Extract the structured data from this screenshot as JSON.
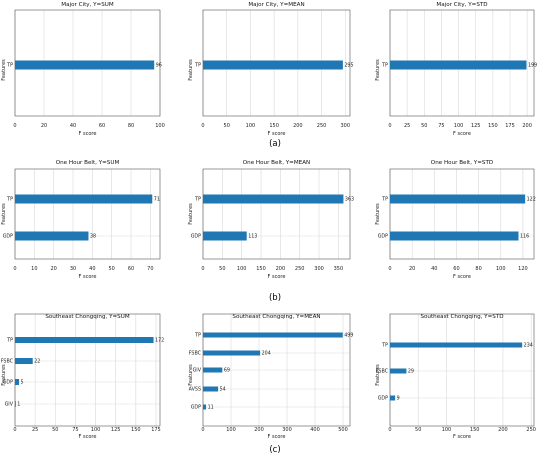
{
  "figure_labels": [
    "(a)",
    "(b)",
    "(c)"
  ],
  "chart_data": [
    {
      "type": "bar",
      "orientation": "horizontal",
      "title": "Major City, Y=SUM",
      "xlabel": "F score",
      "ylabel": "Features",
      "categories": [
        "TP"
      ],
      "values": [
        96
      ],
      "xlim": [
        0,
        100
      ],
      "xticks": [
        0,
        20,
        40,
        60,
        80,
        100
      ],
      "grid": true,
      "bar_color": "#1f77b4"
    },
    {
      "type": "bar",
      "orientation": "horizontal",
      "title": "Major City, Y=MEAN",
      "xlabel": "F score",
      "ylabel": "Features",
      "categories": [
        "TP"
      ],
      "values": [
        295
      ],
      "xlim": [
        0,
        310
      ],
      "xticks": [
        0,
        50,
        100,
        150,
        200,
        250,
        300
      ],
      "grid": true,
      "bar_color": "#1f77b4"
    },
    {
      "type": "bar",
      "orientation": "horizontal",
      "title": "Major City, Y=STD",
      "xlabel": "F score",
      "ylabel": "Features",
      "categories": [
        "TP"
      ],
      "values": [
        199
      ],
      "xlim": [
        0,
        210
      ],
      "xticks": [
        0,
        25,
        50,
        75,
        100,
        125,
        150,
        175,
        200
      ],
      "grid": true,
      "bar_color": "#1f77b4"
    },
    {
      "type": "bar",
      "orientation": "horizontal",
      "title": "One Hour Belt, Y=SUM",
      "xlabel": "F score",
      "ylabel": "Features",
      "categories": [
        "TP",
        "GDP"
      ],
      "values": [
        71,
        38
      ],
      "xlim": [
        0,
        75
      ],
      "xticks": [
        0,
        10,
        20,
        30,
        40,
        50,
        60,
        70
      ],
      "grid": true,
      "bar_color": "#1f77b4"
    },
    {
      "type": "bar",
      "orientation": "horizontal",
      "title": "One Hour Belt, Y=MEAN",
      "xlabel": "F score",
      "ylabel": "Features",
      "categories": [
        "TP",
        "GDP"
      ],
      "values": [
        363,
        113
      ],
      "xlim": [
        0,
        380
      ],
      "xticks": [
        0,
        50,
        100,
        150,
        200,
        250,
        300,
        350
      ],
      "grid": true,
      "bar_color": "#1f77b4"
    },
    {
      "type": "bar",
      "orientation": "horizontal",
      "title": "One Hour Belt, Y=STD",
      "xlabel": "F score",
      "ylabel": "Features",
      "categories": [
        "TP",
        "GDP"
      ],
      "values": [
        122,
        116
      ],
      "xlim": [
        0,
        130
      ],
      "xticks": [
        0,
        20,
        40,
        60,
        80,
        100,
        120
      ],
      "grid": true,
      "bar_color": "#1f77b4"
    },
    {
      "type": "bar",
      "orientation": "horizontal",
      "title": "Southeast Chongqing, Y=SUM",
      "xlabel": "F score",
      "ylabel": "Features",
      "categories": [
        "TP",
        "FSBC",
        "GDP",
        "GIV"
      ],
      "values": [
        172,
        22,
        5,
        1
      ],
      "xlim": [
        0,
        180
      ],
      "xticks": [
        0,
        25,
        50,
        75,
        100,
        125,
        150,
        175
      ],
      "grid": true,
      "bar_color": "#1f77b4"
    },
    {
      "type": "bar",
      "orientation": "horizontal",
      "title": "Southeast Chongqing, Y=MEAN",
      "xlabel": "F score",
      "ylabel": "Features",
      "categories": [
        "TP",
        "FSBC",
        "GIV",
        "AVSS",
        "GDP"
      ],
      "values": [
        499,
        204,
        69,
        54,
        11
      ],
      "xlim": [
        0,
        525
      ],
      "xticks": [
        0,
        100,
        200,
        300,
        400,
        500
      ],
      "grid": true,
      "bar_color": "#1f77b4"
    },
    {
      "type": "bar",
      "orientation": "horizontal",
      "title": "Southeast Chongqing, Y=STD",
      "xlabel": "F score",
      "ylabel": "Features",
      "categories": [
        "TP",
        "FSBC",
        "GDP"
      ],
      "values": [
        234,
        29,
        9
      ],
      "xlim": [
        0,
        255
      ],
      "xticks": [
        0,
        50,
        100,
        150,
        200,
        250
      ],
      "grid": true,
      "bar_color": "#1f77b4"
    }
  ]
}
